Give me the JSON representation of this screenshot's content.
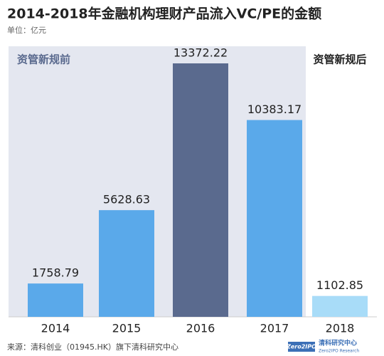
{
  "chart_data": {
    "type": "bar",
    "title": "2014-2018年金融机构理财产品流入VC/PE的金额",
    "subtitle": "单位：亿元",
    "categories": [
      "2014",
      "2015",
      "2016",
      "2017",
      "2018"
    ],
    "values": [
      1758.79,
      5628.63,
      13372.22,
      10383.17,
      1102.85
    ],
    "colors": [
      "#5aa9ea",
      "#5aa9ea",
      "#5a6a8e",
      "#5aa9ea",
      "#a8dcf8"
    ],
    "annotations": [
      "资管新规前",
      "资管新规后"
    ],
    "source": "来源：清科创业（01945.HK）旗下清科研究中心",
    "logo": [
      "Zero2IPO",
      "清科研究中心",
      "Zero2IPO Research"
    ]
  }
}
